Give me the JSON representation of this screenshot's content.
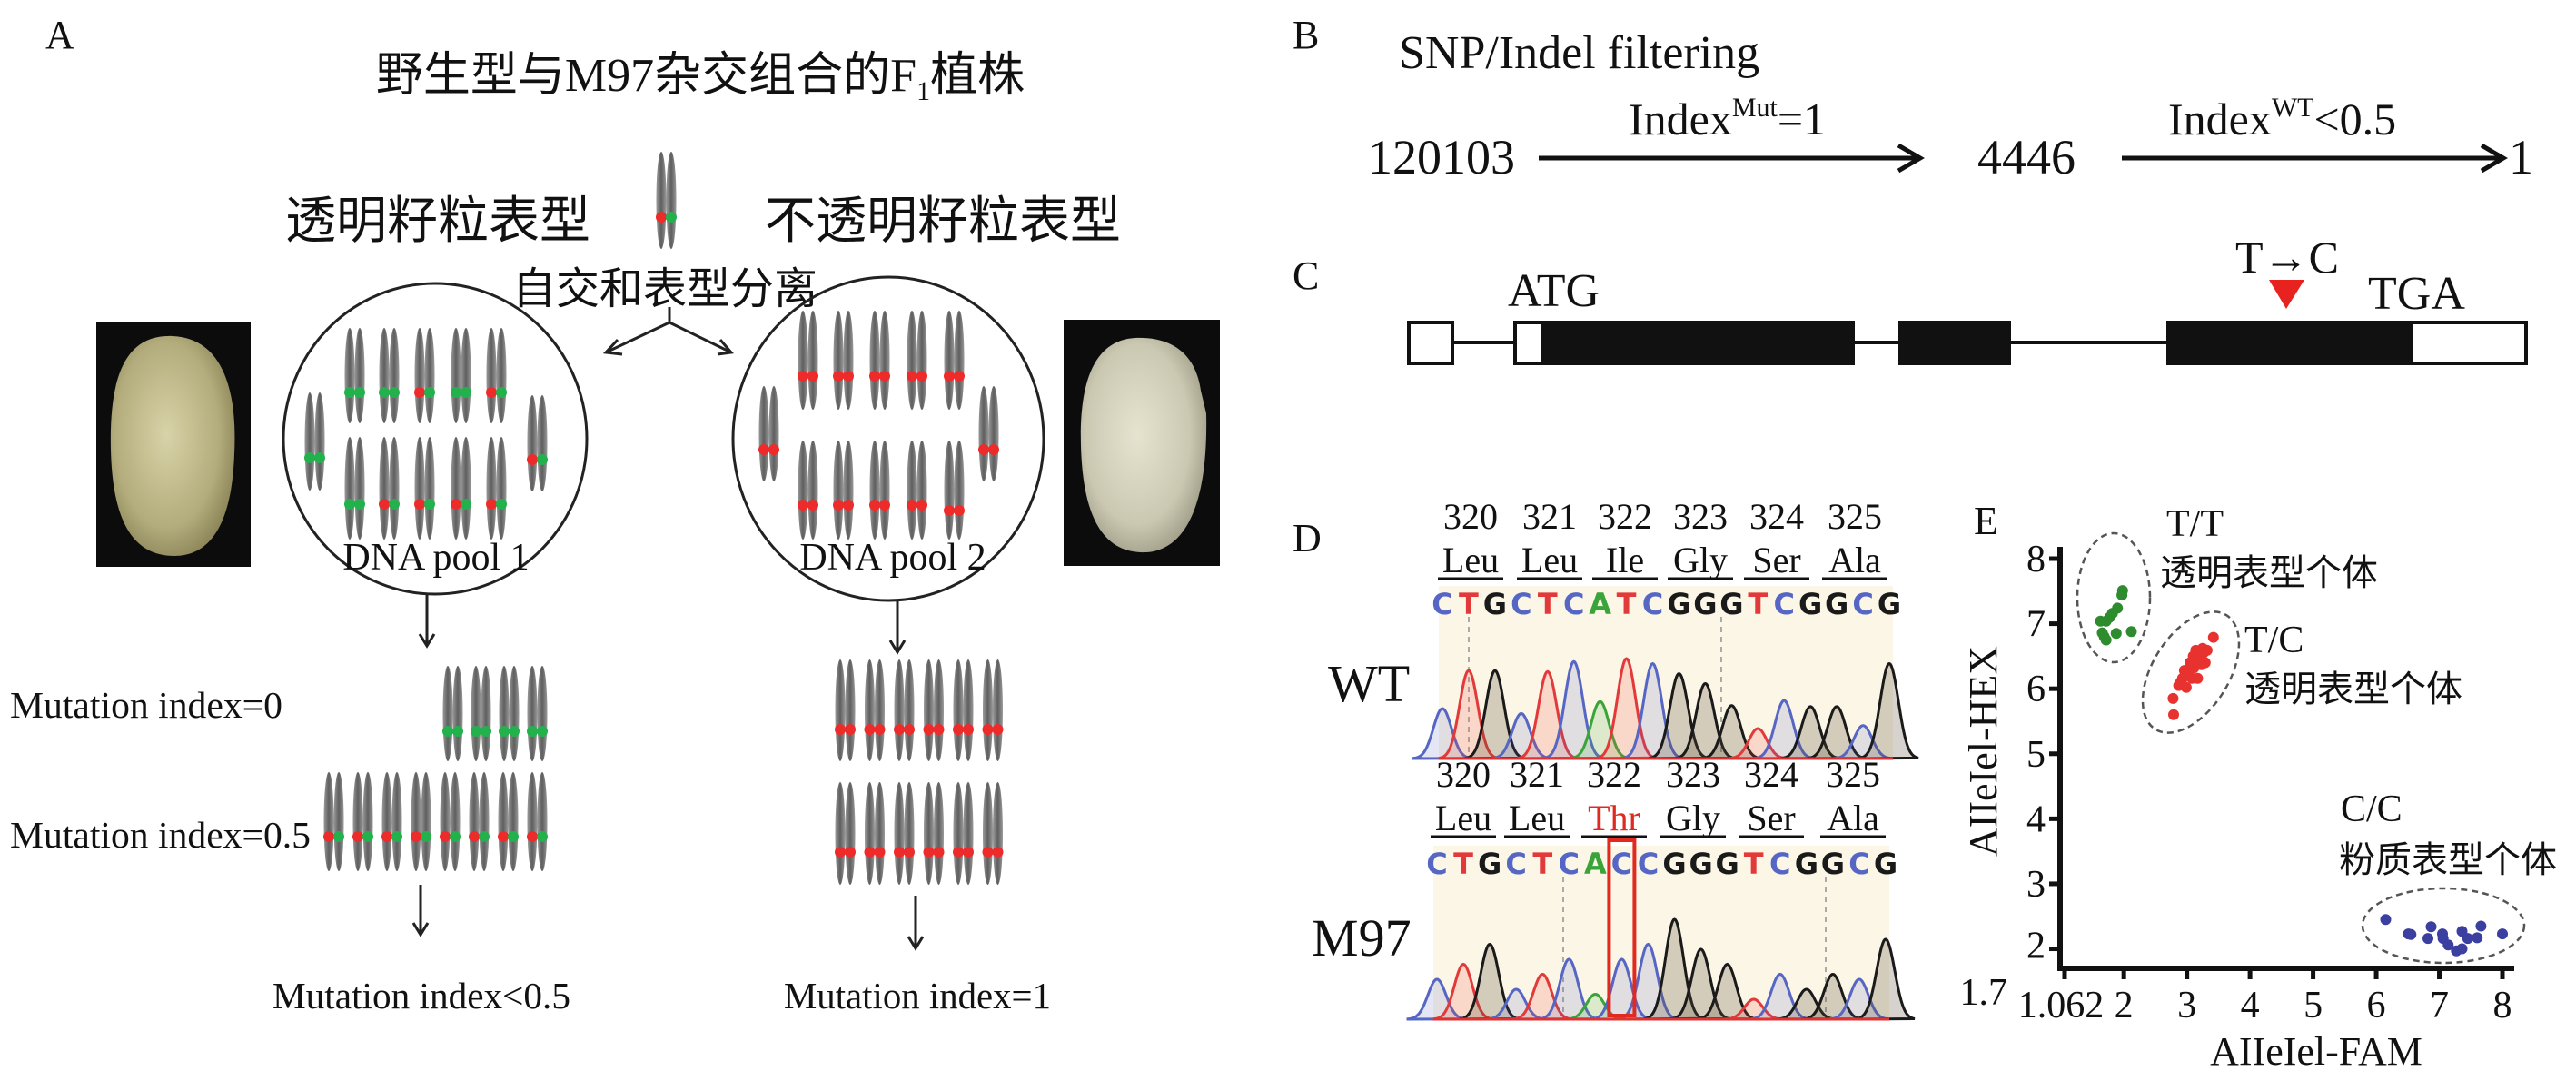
{
  "panel_labels": {
    "a": "A",
    "b": "B",
    "c": "C",
    "d": "D",
    "e": "E"
  },
  "panel_a": {
    "title_main": "野生型与M97杂交组合的F",
    "title_sub": "1",
    "title_tail": "植株",
    "left_phenotype": "透明籽粒表型",
    "right_phenotype": "不透明籽粒表型",
    "selfing": "自交和表型分离",
    "pool1": "DNA pool 1",
    "pool2": "DNA pool 2",
    "index0": "Mutation index=0",
    "index05": "Mutation index=0.5",
    "result_left": "Mutation index<0.5",
    "result_right": "Mutation index=1",
    "colors": {
      "wild_allele": "#22b14c",
      "mutant_allele": "#ee2b2b",
      "chromosome": "#6e6e6e"
    },
    "f1_genotype": "rg",
    "pool1_genotypes": {
      "top": [
        "gg",
        "gg",
        "rg",
        "gg",
        "rg"
      ],
      "bottom": [
        "gg",
        "rg",
        "rg",
        "rg",
        "rg"
      ],
      "side_left": "gg",
      "side_right": "rg"
    },
    "pool2_genotypes": {
      "top": [
        "rr",
        "rr",
        "rr",
        "rr",
        "rr"
      ],
      "bottom": [
        "rr",
        "rr",
        "rr",
        "rr",
        "rr"
      ],
      "side_left": "rr",
      "side_right": "rr"
    },
    "index0_genotypes": [
      "gg",
      "gg",
      "gg",
      "gg"
    ],
    "index05_genotypes": [
      "rg",
      "rg",
      "rg",
      "rg",
      "rg",
      "rg",
      "rg",
      "rg"
    ],
    "index1_rows": [
      [
        "rr",
        "rr",
        "rr",
        "rr",
        "rr",
        "rr"
      ],
      [
        "rr",
        "rr",
        "rr",
        "rr",
        "rr",
        "rr"
      ]
    ]
  },
  "panel_b": {
    "title": "SNP/Indel filtering",
    "start": "120103",
    "step1": {
      "label": "Index",
      "sup": "Mut",
      "tail": "=1"
    },
    "mid": "4446",
    "step2": {
      "label": "Index",
      "sup": "WT",
      "tail": "<0.5"
    },
    "end": "1"
  },
  "panel_c": {
    "start_codon": "ATG",
    "mutation": "T→C",
    "stop_codon": "TGA",
    "marker_color": "#e8221f"
  },
  "panel_d": {
    "base_colors": {
      "A": "#3aa43a",
      "C": "#5566c4",
      "G": "#1a1a1a",
      "T": "#e23a3a"
    },
    "highlight_color": "#e02a20",
    "wt": {
      "label": "WT",
      "positions": [
        "320",
        "321",
        "322",
        "323",
        "324",
        "325"
      ],
      "residues": [
        "Leu",
        "Leu",
        "Ile",
        "Gly",
        "Ser",
        "Ala"
      ],
      "sequence": "CTGCTCATCGGGTCGGCG",
      "peak_heights": [
        0.5,
        0.88,
        0.88,
        0.45,
        0.87,
        0.97,
        0.57,
        1.0,
        0.95,
        0.85,
        0.75,
        0.53,
        0.3,
        0.58,
        0.52,
        0.52,
        0.33,
        0.95
      ]
    },
    "m97": {
      "label": "M97",
      "positions": [
        "320",
        "321",
        "322",
        "323",
        "324",
        "325"
      ],
      "residues": [
        "Leu",
        "Leu",
        "Thr",
        "Gly",
        "Ser",
        "Ala"
      ],
      "highlight_residue": 2,
      "sequence": "CTGCTCACCGGGTCGGCG",
      "highlight_base": 7,
      "peak_heights": [
        0.4,
        0.55,
        0.75,
        0.3,
        0.45,
        0.6,
        0.25,
        0.6,
        0.75,
        1.0,
        0.7,
        0.55,
        0.2,
        0.45,
        0.3,
        0.45,
        0.4,
        0.8
      ]
    }
  },
  "chart_data": {
    "type": "scatter",
    "xlabel": "AIIeIel-FAM",
    "ylabel": "AIIeIel-HEX",
    "xlim": [
      1.062,
      8
    ],
    "ylim": [
      1.7,
      8
    ],
    "xticks": [
      "1.062",
      "2",
      "3",
      "4",
      "5",
      "6",
      "7",
      "8"
    ],
    "xtick_values": [
      1.062,
      2,
      3,
      4,
      5,
      6,
      7,
      8
    ],
    "yticks": [
      "1.7",
      "2",
      "3",
      "4",
      "5",
      "6",
      "7",
      "8"
    ],
    "ytick_values": [
      1.7,
      2,
      3,
      4,
      5,
      6,
      7,
      8
    ],
    "grid": false,
    "series": [
      {
        "name": "T/T",
        "note": "透明表型个体",
        "color": "#2e8b2e",
        "points": [
          [
            1.98,
            7.51
          ],
          [
            1.97,
            7.44
          ],
          [
            1.63,
            7.04
          ],
          [
            1.72,
            7.04
          ],
          [
            1.82,
            7.16
          ],
          [
            1.9,
            7.24
          ],
          [
            1.78,
            7.1
          ],
          [
            1.69,
            6.8
          ],
          [
            1.72,
            6.75
          ],
          [
            1.88,
            6.85
          ],
          [
            2.12,
            6.88
          ],
          [
            1.66,
            6.86
          ]
        ]
      },
      {
        "name": "T/C",
        "note": "透明表型个体",
        "color": "#e8322f",
        "points": [
          [
            2.79,
            5.6
          ],
          [
            2.78,
            5.85
          ],
          [
            2.87,
            6.05
          ],
          [
            2.93,
            6.16
          ],
          [
            2.99,
            6.02
          ],
          [
            3.02,
            6.24
          ],
          [
            3.08,
            6.16
          ],
          [
            3.11,
            6.32
          ],
          [
            3.16,
            6.4
          ],
          [
            3.2,
            6.48
          ],
          [
            3.26,
            6.55
          ],
          [
            3.32,
            6.59
          ],
          [
            3.23,
            6.37
          ],
          [
            3.05,
            6.4
          ],
          [
            3.14,
            6.59
          ],
          [
            3.42,
            6.79
          ],
          [
            3.17,
            6.16
          ],
          [
            2.96,
            6.28
          ],
          [
            3.29,
            6.4
          ],
          [
            2.9,
            6.1
          ],
          [
            3.1,
            6.5
          ],
          [
            3.25,
            6.62
          ]
        ]
      },
      {
        "name": "C/C",
        "note": "粉质表型个体",
        "color": "#3a3fa0",
        "points": [
          [
            6.15,
            2.45
          ],
          [
            6.51,
            2.23
          ],
          [
            6.55,
            2.22
          ],
          [
            6.87,
            2.34
          ],
          [
            6.82,
            2.16
          ],
          [
            7.05,
            2.23
          ],
          [
            7.06,
            2.16
          ],
          [
            7.14,
            2.06
          ],
          [
            7.27,
            1.97
          ],
          [
            7.36,
            2.0
          ],
          [
            7.36,
            2.27
          ],
          [
            7.45,
            2.16
          ],
          [
            7.6,
            2.17
          ],
          [
            7.66,
            2.35
          ],
          [
            8.0,
            2.23
          ]
        ]
      }
    ]
  }
}
